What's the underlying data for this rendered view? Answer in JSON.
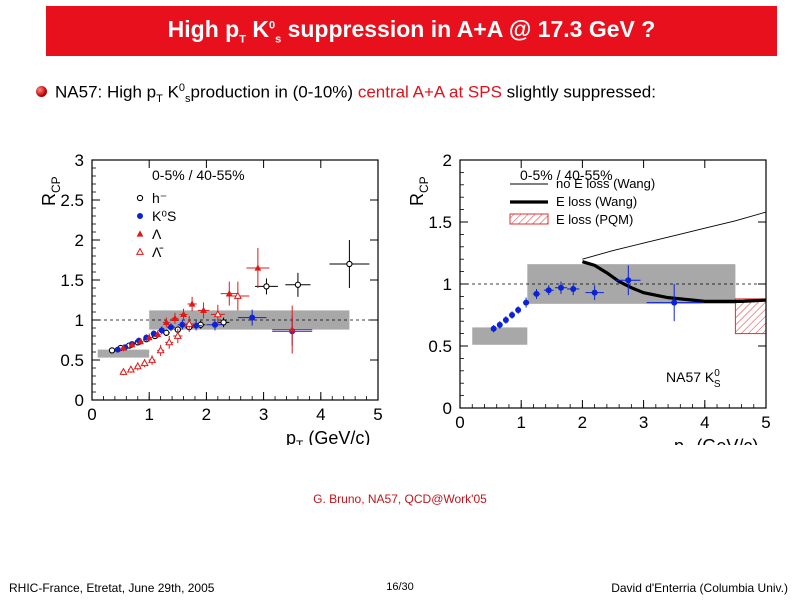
{
  "slide": {
    "title_parts": {
      "a": "High p",
      "b": "T",
      "c": " K",
      "d": "0",
      "e": "s",
      "f": " suppression in A+A @ 17.3 GeV ?"
    },
    "bullet_parts": {
      "a": "NA57: High p",
      "b": "T",
      "c": " K",
      "d": "0",
      "e": "s",
      "f": "production in (0-10%) ",
      "g": "central A+A at SPS",
      "h": " slightly suppressed:"
    },
    "credit": "G. Bruno, NA57, QCD@Work'05",
    "footer_left": "RHIC-France, Etretat, June 29th, 2005",
    "footer_center": "16/30",
    "footer_right": "David d'Enterria (Columbia Univ.)"
  },
  "colors": {
    "title_bg": "#e8101c",
    "accent_red": "#e0101c",
    "k0s": "#0b22d6",
    "lambda": "#e01818",
    "hminus": "#000000",
    "band": "#a8a8a8"
  },
  "chart_data": [
    {
      "type": "scatter",
      "xlabel_main": "p",
      "xlabel_sub": "T",
      "xlabel_unit": " (GeV/c)",
      "ylabel_main": "R",
      "ylabel_sub": "CP",
      "annotation": "0-5% / 40-55%",
      "xlim": [
        0,
        5
      ],
      "ylim": [
        0,
        3
      ],
      "xticks": [
        0,
        1,
        2,
        3,
        4,
        5
      ],
      "yticks": [
        0,
        0.5,
        1,
        1.5,
        2,
        2.5,
        3
      ],
      "reference_line": 1,
      "legend": [
        "h⁻",
        "K⁰S",
        "Λ",
        "Λ̄"
      ],
      "bands": [
        {
          "x0": 0.1,
          "x1": 1.0,
          "y": 0.58,
          "h": 0.1
        },
        {
          "x0": 1.0,
          "x1": 4.5,
          "y": 1.0,
          "h": 0.24
        }
      ],
      "series": [
        {
          "name": "h⁻",
          "marker": "open-circle",
          "color": "#000000",
          "points": [
            [
              0.35,
              0.62,
              0.03,
              0.03
            ],
            [
              0.5,
              0.65,
              0.04,
              0.03
            ],
            [
              0.65,
              0.68,
              0.04,
              0.03
            ],
            [
              0.8,
              0.72,
              0.04,
              0.03
            ],
            [
              0.95,
              0.76,
              0.05,
              0.03
            ],
            [
              1.1,
              0.8,
              0.05,
              0.03
            ],
            [
              1.3,
              0.84,
              0.06,
              0.04
            ],
            [
              1.5,
              0.88,
              0.06,
              0.04
            ],
            [
              1.7,
              0.91,
              0.07,
              0.04
            ],
            [
              1.9,
              0.94,
              0.08,
              0.05
            ],
            [
              2.3,
              0.97,
              0.1,
              0.06
            ],
            [
              3.05,
              1.42,
              0.2,
              0.1
            ],
            [
              3.6,
              1.44,
              0.22,
              0.15
            ],
            [
              4.5,
              1.7,
              0.35,
              0.3
            ]
          ]
        },
        {
          "name": "K⁰S",
          "marker": "filled-circle",
          "color": "#0b22d6",
          "points": [
            [
              0.45,
              0.63,
              0.04,
              0.03
            ],
            [
              0.58,
              0.66,
              0.04,
              0.03
            ],
            [
              0.7,
              0.7,
              0.04,
              0.03
            ],
            [
              0.82,
              0.74,
              0.04,
              0.04
            ],
            [
              0.95,
              0.78,
              0.04,
              0.04
            ],
            [
              1.08,
              0.83,
              0.05,
              0.04
            ],
            [
              1.22,
              0.87,
              0.06,
              0.05
            ],
            [
              1.38,
              0.91,
              0.07,
              0.05
            ],
            [
              1.58,
              0.94,
              0.08,
              0.06
            ],
            [
              1.82,
              0.93,
              0.1,
              0.06
            ],
            [
              2.15,
              0.94,
              0.15,
              0.07
            ],
            [
              2.8,
              1.03,
              0.25,
              0.1
            ],
            [
              3.5,
              0.86,
              0.35,
              0.18
            ]
          ]
        },
        {
          "name": "Λ",
          "marker": "filled-triangle",
          "color": "#e01818",
          "points": [
            [
              0.55,
              0.65,
              0.05,
              0.04
            ],
            [
              0.7,
              0.69,
              0.05,
              0.04
            ],
            [
              0.85,
              0.73,
              0.05,
              0.04
            ],
            [
              1.0,
              0.78,
              0.05,
              0.05
            ],
            [
              1.15,
              0.82,
              0.05,
              0.05
            ],
            [
              1.3,
              0.97,
              0.06,
              0.06
            ],
            [
              1.45,
              1.02,
              0.06,
              0.07
            ],
            [
              1.6,
              1.07,
              0.07,
              0.07
            ],
            [
              1.75,
              1.2,
              0.08,
              0.09
            ],
            [
              1.95,
              1.12,
              0.1,
              0.1
            ],
            [
              2.4,
              1.33,
              0.15,
              0.15
            ],
            [
              2.9,
              1.65,
              0.2,
              0.25
            ],
            [
              3.5,
              0.88,
              0.35,
              0.3
            ]
          ]
        },
        {
          "name": "Λ̄",
          "marker": "open-triangle",
          "color": "#e01818",
          "points": [
            [
              0.55,
              0.35,
              0.05,
              0.04
            ],
            [
              0.68,
              0.38,
              0.05,
              0.04
            ],
            [
              0.8,
              0.42,
              0.05,
              0.05
            ],
            [
              0.92,
              0.46,
              0.05,
              0.05
            ],
            [
              1.05,
              0.5,
              0.06,
              0.06
            ],
            [
              1.2,
              0.62,
              0.06,
              0.07
            ],
            [
              1.35,
              0.72,
              0.07,
              0.08
            ],
            [
              1.5,
              0.8,
              0.08,
              0.09
            ],
            [
              1.7,
              0.95,
              0.1,
              0.1
            ],
            [
              2.2,
              1.07,
              0.12,
              0.12
            ],
            [
              2.55,
              1.3,
              0.2,
              0.18
            ]
          ]
        }
      ]
    },
    {
      "type": "line",
      "xlabel_main": "p",
      "xlabel_sub": "T",
      "xlabel_unit": " (GeV/c)",
      "ylabel_main": "R",
      "ylabel_sub": "CP",
      "annotation": "0-5% / 40-55%",
      "corner_label_a": "NA57 K",
      "corner_label_sup": "0",
      "corner_label_sub": "S",
      "xlim": [
        0,
        5
      ],
      "ylim": [
        0,
        2
      ],
      "xticks": [
        0,
        1,
        2,
        3,
        4,
        5
      ],
      "yticks": [
        0,
        0.5,
        1,
        1.5,
        2
      ],
      "reference_line": 1,
      "legend": [
        "no E loss (Wang)",
        "E loss (Wang)",
        "E loss (PQM)"
      ],
      "bands": [
        {
          "x0": 0.2,
          "x1": 1.1,
          "y": 0.58,
          "h": 0.14
        },
        {
          "x0": 1.1,
          "x1": 4.5,
          "y": 1.0,
          "h": 0.32
        }
      ],
      "pqm_box": {
        "x0": 4.5,
        "x1": 5.0,
        "y0": 0.6,
        "y1": 0.88
      },
      "series": [
        {
          "name": "no E loss (Wang)",
          "style": "thin",
          "x": [
            2.0,
            2.5,
            3.0,
            3.5,
            4.0,
            4.5,
            5.0
          ],
          "y": [
            1.2,
            1.27,
            1.33,
            1.39,
            1.45,
            1.51,
            1.58
          ]
        },
        {
          "name": "E loss (Wang)",
          "style": "thick",
          "x": [
            2.0,
            2.2,
            2.4,
            2.6,
            2.8,
            3.0,
            3.2,
            3.4,
            3.6,
            3.8,
            4.0,
            4.3,
            4.6,
            5.0
          ],
          "y": [
            1.18,
            1.15,
            1.09,
            1.02,
            0.97,
            0.93,
            0.91,
            0.89,
            0.88,
            0.87,
            0.86,
            0.86,
            0.86,
            0.87
          ]
        },
        {
          "name": "NA57 K⁰S",
          "style": "points",
          "color": "#0b22d6",
          "points": [
            [
              0.55,
              0.64,
              0.04,
              0.03
            ],
            [
              0.65,
              0.67,
              0.04,
              0.03
            ],
            [
              0.75,
              0.71,
              0.04,
              0.03
            ],
            [
              0.85,
              0.75,
              0.04,
              0.03
            ],
            [
              0.95,
              0.79,
              0.04,
              0.03
            ],
            [
              1.08,
              0.85,
              0.05,
              0.04
            ],
            [
              1.25,
              0.92,
              0.06,
              0.04
            ],
            [
              1.45,
              0.95,
              0.08,
              0.04
            ],
            [
              1.65,
              0.97,
              0.1,
              0.05
            ],
            [
              1.85,
              0.96,
              0.1,
              0.05
            ],
            [
              2.2,
              0.93,
              0.15,
              0.06
            ],
            [
              2.75,
              1.03,
              0.2,
              0.12
            ],
            [
              3.5,
              0.85,
              0.45,
              0.15
            ]
          ]
        }
      ]
    }
  ]
}
